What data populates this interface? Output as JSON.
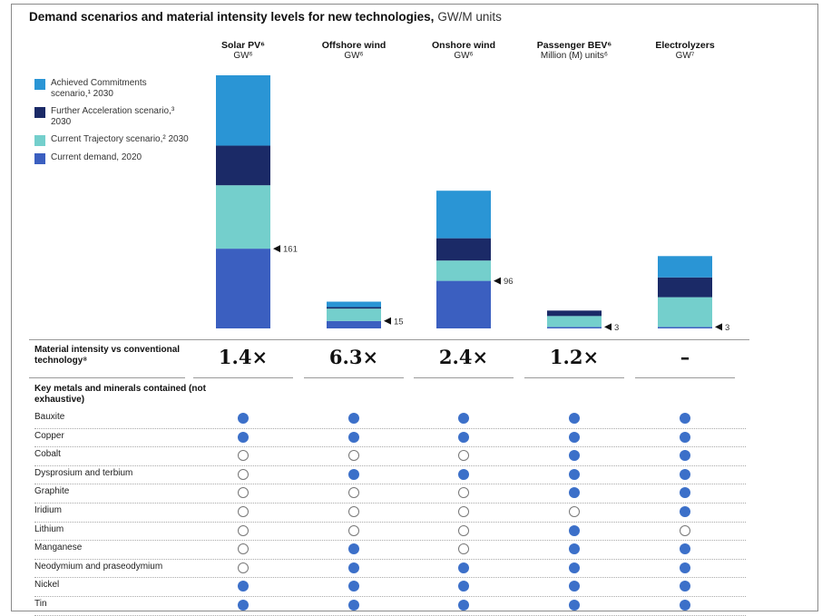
{
  "title": "Demand scenarios and material intensity levels for new technologies,",
  "title_unit": "GW/M units",
  "columns": [
    {
      "name": "Solar PV⁶",
      "unit": "GW⁶"
    },
    {
      "name": "Offshore wind",
      "unit": "GW⁶"
    },
    {
      "name": "Onshore wind",
      "unit": "GW⁶"
    },
    {
      "name": "Passenger BEV⁶",
      "unit": "Million (M) units⁶"
    },
    {
      "name": "Electrolyzers",
      "unit": "GW⁷"
    }
  ],
  "legend": [
    {
      "label": "Achieved Commitments scenario,¹ 2030",
      "color": "#2a95d5"
    },
    {
      "label": "Further Acceleration scenario,³ 2030",
      "color": "#1b2a67"
    },
    {
      "label": "Current Trajectory scenario,² 2030",
      "color": "#74cfcc"
    },
    {
      "label": "Current demand, 2020",
      "color": "#3b5fc0"
    }
  ],
  "chart_data": {
    "type": "bar",
    "stacked": true,
    "categories": [
      "Solar PV",
      "Offshore wind",
      "Onshore wind",
      "Passenger BEV",
      "Electrolyzers"
    ],
    "series": [
      {
        "name": "Current demand, 2020",
        "values": [
          161,
          15,
          96,
          3,
          3
        ]
      },
      {
        "name": "Current Trajectory scenario, 2030",
        "values": [
          128,
          25,
          41,
          22,
          60
        ]
      },
      {
        "name": "Further Acceleration scenario, 2030",
        "values": [
          80,
          3,
          45,
          11,
          40
        ]
      },
      {
        "name": "Achieved Commitments scenario, 2030",
        "values": [
          142,
          11,
          96,
          0,
          43
        ]
      }
    ],
    "data_labels": [
      "161",
      "15",
      "96",
      "3",
      "3"
    ]
  },
  "intensity": {
    "label": "Material intensity vs conventional technology⁸",
    "values": [
      "1.4×",
      "6.3×",
      "2.4×",
      "1.2×",
      "–"
    ]
  },
  "metals_heading": "Key metals and minerals contained (not exhaustive)",
  "metals": [
    {
      "name": "Bauxite",
      "dots": [
        true,
        true,
        true,
        true,
        true
      ]
    },
    {
      "name": "Copper",
      "dots": [
        true,
        true,
        true,
        true,
        true
      ]
    },
    {
      "name": "Cobalt",
      "dots": [
        false,
        false,
        false,
        true,
        true
      ]
    },
    {
      "name": "Dysprosium and terbium",
      "dots": [
        false,
        true,
        true,
        true,
        true
      ]
    },
    {
      "name": "Graphite",
      "dots": [
        false,
        false,
        false,
        true,
        true
      ]
    },
    {
      "name": "Iridium",
      "dots": [
        false,
        false,
        false,
        false,
        true
      ]
    },
    {
      "name": "Lithium",
      "dots": [
        false,
        false,
        false,
        true,
        false
      ]
    },
    {
      "name": "Manganese",
      "dots": [
        false,
        true,
        false,
        true,
        true
      ]
    },
    {
      "name": "Neodymium and praseodymium",
      "dots": [
        false,
        true,
        true,
        true,
        true
      ]
    },
    {
      "name": "Nickel",
      "dots": [
        true,
        true,
        true,
        true,
        true
      ]
    },
    {
      "name": "Tin",
      "dots": [
        true,
        true,
        true,
        true,
        true
      ]
    }
  ]
}
